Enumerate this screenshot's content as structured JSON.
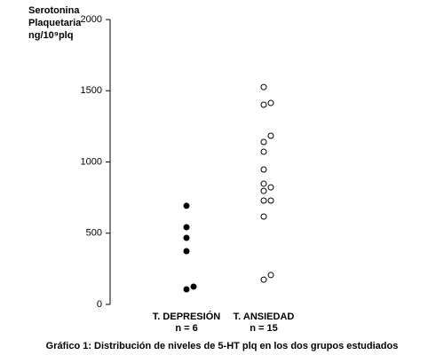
{
  "chart_data": {
    "type": "strip",
    "y_label_lines": [
      "Serotonina",
      "Plaquetaria",
      "ng/10⁹plq"
    ],
    "caption": "Gráfico 1: Distribución de niveles de 5-HT plq en los dos grupos estudiados",
    "groups": [
      {
        "name": "T. DEPRESIÓN",
        "n_label": "n = 6",
        "marker": "filled",
        "color": "#000000",
        "values": [
          692,
          542,
          467,
          374,
          106,
          125
        ]
      },
      {
        "name": "T. ANSIEDAD",
        "n_label": "n = 15",
        "marker": "hollow",
        "color": "#000000",
        "values": [
          1526,
          1402,
          1414,
          1140,
          1184,
          1072,
          947,
          847,
          797,
          822,
          729,
          729,
          617,
          174,
          206
        ]
      }
    ],
    "ylim": [
      0,
      2000
    ],
    "yticks": [
      0,
      500,
      1000,
      1500,
      2000
    ]
  }
}
